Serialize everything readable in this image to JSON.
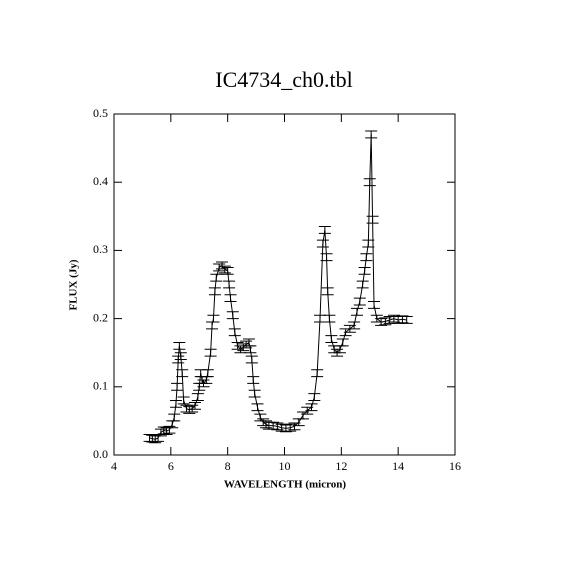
{
  "chart_data": {
    "type": "errorline",
    "title": "IC4734_ch0.tbl",
    "x_label": "WAVELENGTH (micron)",
    "y_label": "FLUX (Jy)",
    "x": [
      5.25,
      5.35,
      5.45,
      5.55,
      5.65,
      5.75,
      5.85,
      5.95,
      6.05,
      6.12,
      6.18,
      6.22,
      6.26,
      6.3,
      6.35,
      6.4,
      6.45,
      6.55,
      6.65,
      6.75,
      6.85,
      6.95,
      7.0,
      7.05,
      7.1,
      7.15,
      7.25,
      7.3,
      7.4,
      7.45,
      7.5,
      7.55,
      7.6,
      7.7,
      7.8,
      7.9,
      8.0,
      8.05,
      8.1,
      8.18,
      8.25,
      8.35,
      8.45,
      8.55,
      8.65,
      8.75,
      8.8,
      8.85,
      8.9,
      8.95,
      9.05,
      9.15,
      9.25,
      9.35,
      9.45,
      9.6,
      9.75,
      9.9,
      10.05,
      10.2,
      10.35,
      10.5,
      10.65,
      10.8,
      10.95,
      11.05,
      11.15,
      11.25,
      11.35,
      11.42,
      11.48,
      11.52,
      11.58,
      11.65,
      11.75,
      11.85,
      11.95,
      12.05,
      12.15,
      12.3,
      12.45,
      12.55,
      12.65,
      12.75,
      12.82,
      12.88,
      12.95,
      13.0,
      13.05,
      13.1,
      13.15,
      13.25,
      13.4,
      13.55,
      13.7,
      13.85,
      14.0,
      14.15,
      14.3
    ],
    "series": [
      {
        "color": "#000000",
        "values": [
          0.025,
          0.024,
          0.023,
          0.025,
          0.033,
          0.036,
          0.035,
          0.037,
          0.045,
          0.055,
          0.075,
          0.1,
          0.14,
          0.16,
          0.145,
          0.12,
          0.08,
          0.068,
          0.066,
          0.068,
          0.072,
          0.085,
          0.1,
          0.12,
          0.11,
          0.105,
          0.11,
          0.12,
          0.15,
          0.19,
          0.2,
          0.24,
          0.26,
          0.275,
          0.278,
          0.272,
          0.27,
          0.25,
          0.23,
          0.205,
          0.18,
          0.16,
          0.155,
          0.158,
          0.162,
          0.165,
          0.155,
          0.14,
          0.11,
          0.09,
          0.07,
          0.055,
          0.048,
          0.045,
          0.043,
          0.043,
          0.042,
          0.04,
          0.039,
          0.04,
          0.042,
          0.048,
          0.058,
          0.065,
          0.07,
          0.085,
          0.12,
          0.2,
          0.31,
          0.33,
          0.29,
          0.24,
          0.2,
          0.17,
          0.155,
          0.15,
          0.155,
          0.165,
          0.18,
          0.185,
          0.19,
          0.21,
          0.225,
          0.25,
          0.27,
          0.29,
          0.31,
          0.4,
          0.47,
          0.345,
          0.22,
          0.2,
          0.195,
          0.196,
          0.198,
          0.2,
          0.198,
          0.199,
          0.198
        ]
      }
    ],
    "error": 0.005,
    "xlim": [
      4,
      16
    ],
    "ylim": [
      0,
      0.5
    ],
    "xticks": [
      4,
      6,
      8,
      10,
      12,
      14,
      16
    ],
    "yticks": [
      {
        "value": 0,
        "label": "0.0"
      },
      0.1,
      0.2,
      0.3,
      0.4,
      0.5
    ]
  }
}
